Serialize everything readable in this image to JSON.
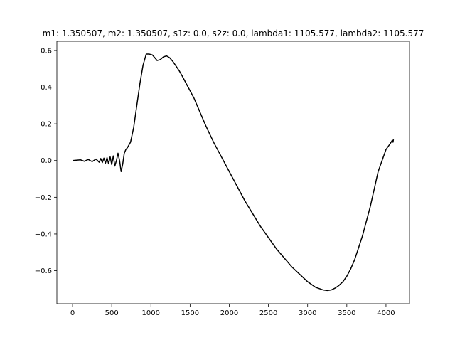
{
  "chart_data": {
    "type": "line",
    "title": "m1: 1.350507, m2: 1.350507, s1z: 0.0, s2z: 0.0, lambda1: 1105.577, lambda2: 1105.577",
    "xlabel": "",
    "ylabel": "",
    "xlim": [
      -200,
      4300
    ],
    "ylim": [
      -0.78,
      0.65
    ],
    "grid": false,
    "line_color": "#000000",
    "x_ticks": [
      0,
      500,
      1000,
      1500,
      2000,
      2500,
      3000,
      3500,
      4000
    ],
    "x_tick_labels": [
      "0",
      "500",
      "1000",
      "1500",
      "2000",
      "2500",
      "3000",
      "3500",
      "4000"
    ],
    "y_ticks": [
      -0.6,
      -0.4,
      -0.2,
      0.0,
      0.2,
      0.4,
      0.6
    ],
    "y_tick_labels": [
      "−0.6",
      "−0.4",
      "−0.2",
      "0.0",
      "0.2",
      "0.4",
      "0.6"
    ],
    "series": [
      {
        "x": [
          0,
          100,
          150,
          200,
          250,
          300,
          340,
          360,
          380,
          400,
          420,
          440,
          460,
          480,
          500,
          520,
          540,
          560,
          580,
          600,
          620,
          640,
          660,
          680,
          700,
          740,
          780,
          820,
          860,
          900,
          940,
          980,
          1020,
          1050,
          1080,
          1120,
          1160,
          1200,
          1240,
          1280,
          1320,
          1360,
          1400,
          1450,
          1500,
          1550,
          1600,
          1650,
          1700,
          1800,
          1900,
          2000,
          2100,
          2200,
          2300,
          2400,
          2500,
          2600,
          2700,
          2800,
          2900,
          3000,
          3100,
          3200,
          3250,
          3300,
          3350,
          3400,
          3450,
          3500,
          3550,
          3600,
          3700,
          3800,
          3900,
          4000,
          4050,
          4080,
          4090,
          4095
        ],
        "y": [
          0.0,
          0.004,
          -0.004,
          0.006,
          -0.006,
          0.008,
          -0.009,
          0.011,
          -0.011,
          0.013,
          -0.014,
          0.016,
          -0.018,
          0.02,
          -0.022,
          0.025,
          -0.03,
          0.0,
          0.04,
          0.0,
          -0.06,
          -0.02,
          0.04,
          0.06,
          0.07,
          0.1,
          0.18,
          0.3,
          0.42,
          0.52,
          0.58,
          0.58,
          0.575,
          0.56,
          0.545,
          0.55,
          0.565,
          0.57,
          0.56,
          0.54,
          0.515,
          0.49,
          0.46,
          0.42,
          0.38,
          0.34,
          0.29,
          0.24,
          0.19,
          0.1,
          0.02,
          -0.06,
          -0.14,
          -0.22,
          -0.29,
          -0.36,
          -0.42,
          -0.48,
          -0.53,
          -0.58,
          -0.62,
          -0.66,
          -0.69,
          -0.705,
          -0.708,
          -0.705,
          -0.695,
          -0.68,
          -0.66,
          -0.63,
          -0.59,
          -0.54,
          -0.41,
          -0.25,
          -0.06,
          0.06,
          0.09,
          0.11,
          0.1,
          0.115
        ]
      }
    ]
  }
}
